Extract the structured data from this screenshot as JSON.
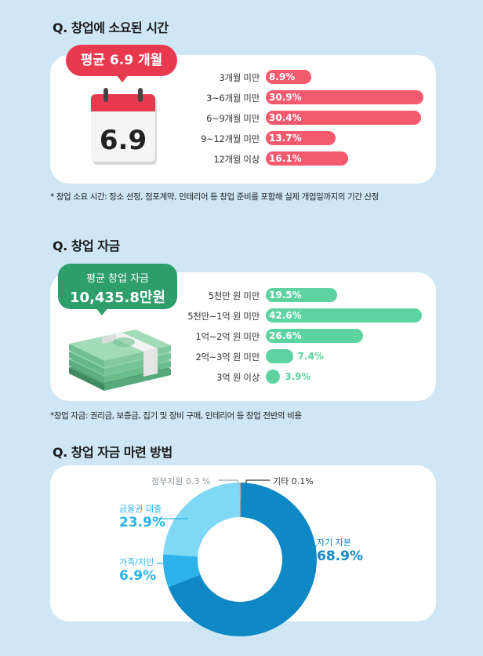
{
  "sections": [
    {
      "question": "Q. 창업에 소요된 시간",
      "badge": "평균 6.9 개월",
      "calendar_number": "6.9",
      "note": "* 창업 소요 시간: 장소 선정, 점포계약, 인테리어 등 창업 준비를 포함해 실제 개업일까지의 기간 산정"
    },
    {
      "question": "Q. 창업 자금",
      "badge_line1": "평균 창업 자금",
      "badge_line2": "10,435.8만원",
      "note": "*창업 자금: 권리금, 보증금, 집기 및 장비 구매, 인테리어 등 창업 전반의 비용"
    },
    {
      "question": "Q. 창업 자금 마련 방법"
    }
  ],
  "colors": {
    "red": "#f45a6e",
    "green": "#5dd3a0",
    "blue_dark": "#0f89c6",
    "blue_mid": "#2bb3ea",
    "blue_light": "#7fd9f5",
    "gray": "#9aa5ad",
    "background": "#cfe6f5"
  },
  "chart_data": [
    {
      "type": "bar",
      "orientation": "horizontal",
      "categories": [
        "3개월 미만",
        "3~6개월 미만",
        "6~9개월 미만",
        "9~12개월 미만",
        "12개월 이상"
      ],
      "values": [
        8.9,
        30.9,
        30.4,
        13.7,
        16.1
      ],
      "value_labels": [
        "8.9%",
        "30.9%",
        "30.4%",
        "13.7%",
        "16.1%"
      ],
      "unit": "%"
    },
    {
      "type": "bar",
      "orientation": "horizontal",
      "categories": [
        "5천만 원 미만",
        "5천만~1억 원 미만",
        "1억~2억 원 미만",
        "2억~3억 원 미만",
        "3억 원 이상"
      ],
      "values": [
        19.5,
        42.6,
        26.6,
        7.4,
        3.9
      ],
      "value_labels": [
        "19.5%",
        "42.6%",
        "26.6%",
        "7.4%",
        "3.9%"
      ],
      "unit": "%"
    },
    {
      "type": "pie",
      "donut": true,
      "slices": [
        {
          "name": "자기 자본",
          "value": 68.9,
          "label": "68.9%"
        },
        {
          "name": "가족/지인",
          "value": 6.9,
          "label": "6.9%"
        },
        {
          "name": "금융권 대출",
          "value": 23.9,
          "label": "23.9%"
        },
        {
          "name": "정부지원",
          "value": 0.3,
          "label": "0.3 %"
        },
        {
          "name": "기타",
          "value": 0.1,
          "label": "0.1%"
        }
      ]
    }
  ]
}
